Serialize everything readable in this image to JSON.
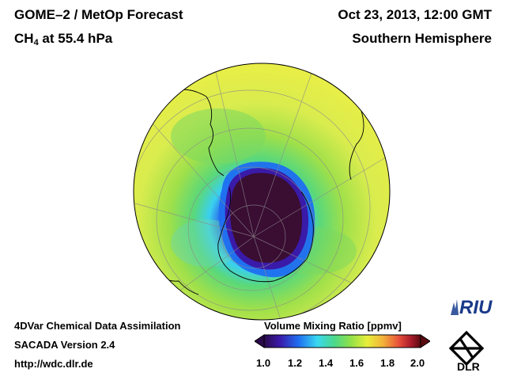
{
  "header": {
    "product": "GOME–2 / MetOp Forecast",
    "species": "CH",
    "species_sub": "4",
    "level": " at 55.4 hPa",
    "datetime": "Oct 23, 2013, 12:00 GMT",
    "region": "Southern Hemisphere"
  },
  "footer": {
    "line1": "4DVar Chemical Data Assimilation",
    "line2": "SACADA Version 2.4",
    "line3": "http://wdc.dlr.de"
  },
  "colorbar": {
    "title": "Volume Mixing Ratio [ppmv]",
    "ticks": [
      "1.0",
      "1.2",
      "1.4",
      "1.6",
      "1.8",
      "2.0"
    ],
    "min": 1.0,
    "max": 2.0,
    "colors": [
      "#2a0a4a",
      "#3a1aa8",
      "#1f6ef0",
      "#38d8f0",
      "#4cd88a",
      "#8ee04a",
      "#e8ee3a",
      "#f2b23a",
      "#e8503a",
      "#a81a2a",
      "#5a0a10"
    ]
  },
  "map": {
    "projection": "orthographic, south pole",
    "ocean_background_color": "#d9ec4e",
    "vortex_color": "#3a0d33"
  },
  "logos": {
    "riu": "RIU",
    "dlr": "DLR"
  }
}
